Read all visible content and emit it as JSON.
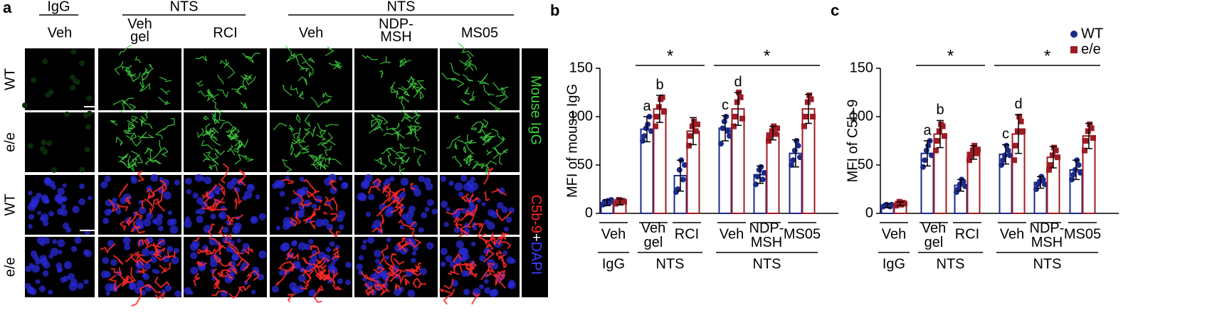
{
  "panel_a": {
    "label": "a",
    "top_groups": [
      "IgG",
      "NTS",
      "NTS"
    ],
    "columns": [
      "Veh",
      "Veh gel",
      "RCI",
      "Veh",
      "NDP-MSH",
      "MS05"
    ],
    "rows": [
      "WT",
      "e/e",
      "WT",
      "e/e"
    ],
    "stain_top": "Mouse IgG",
    "stain_bottom": [
      "C5b-9",
      "+",
      "DAPI"
    ]
  },
  "chart_data": [
    {
      "type": "bar",
      "panel_label": "b",
      "ylabel": "MFI of mouse IgG",
      "ylim": [
        0,
        150
      ],
      "yticks": [
        0,
        50,
        100,
        150
      ],
      "categories": [
        "Veh",
        "Veh gel",
        "RCI",
        "Veh",
        "NDP-MSH",
        "MS05"
      ],
      "groups": [
        "IgG",
        "NTS",
        "NTS"
      ],
      "significance": [
        "*",
        "*"
      ],
      "letters": [
        "a",
        "b",
        "c",
        "d"
      ],
      "legend": false,
      "series": [
        {
          "color": "#1c2a8a",
          "values": [
            11,
            87,
            39,
            88,
            40,
            62
          ],
          "error": [
            3,
            13,
            16,
            13,
            9,
            14
          ],
          "points": [
            [
              9,
              12,
              10,
              13,
              11,
              14
            ],
            [
              75,
              80,
              88,
              92,
              100,
              85
            ],
            [
              22,
              25,
              45,
              55,
              35,
              50
            ],
            [
              72,
              88,
              95,
              100,
              85,
              80
            ],
            [
              30,
              38,
              45,
              48,
              35,
              42
            ],
            [
              50,
              55,
              65,
              75,
              70,
              58
            ]
          ]
        },
        {
          "color": "#9e1b24",
          "values": [
            12,
            108,
            85,
            108,
            83,
            108
          ],
          "error": [
            3,
            14,
            14,
            17,
            7,
            15
          ],
          "points": [
            [
              10,
              12,
              14,
              11,
              13,
              12
            ],
            [
              90,
              100,
              110,
              118,
              120,
              105
            ],
            [
              70,
              80,
              90,
              95,
              85,
              92
            ],
            [
              90,
              100,
              115,
              125,
              120,
              98
            ],
            [
              75,
              80,
              85,
              90,
              82,
              88
            ],
            [
              90,
              100,
              115,
              122,
              118,
              100
            ]
          ]
        }
      ]
    },
    {
      "type": "bar",
      "panel_label": "c",
      "ylabel": "MFI of C5b-9",
      "ylim": [
        0,
        150
      ],
      "yticks": [
        0,
        50,
        100,
        150
      ],
      "categories": [
        "Veh",
        "Veh gel",
        "RCI",
        "Veh",
        "NDP-MSH",
        "MS05"
      ],
      "groups": [
        "IgG",
        "NTS",
        "NTS"
      ],
      "significance": [
        "*",
        "*"
      ],
      "letters": [
        "a",
        "b",
        "c",
        "d"
      ],
      "legend": "top-right",
      "series": [
        {
          "name": "WT",
          "color": "#1c2a8a",
          "values": [
            8,
            62,
            29,
            61,
            32,
            45
          ],
          "error": [
            2,
            13,
            6,
            10,
            6,
            10
          ],
          "points": [
            [
              7,
              8,
              9,
              8,
              7,
              9
            ],
            [
              48,
              55,
              65,
              70,
              75,
              60
            ],
            [
              22,
              25,
              30,
              35,
              33,
              28
            ],
            [
              50,
              55,
              60,
              70,
              65,
              60
            ],
            [
              25,
              30,
              33,
              38,
              35,
              30
            ],
            [
              35,
              40,
              45,
              55,
              50,
              42
            ]
          ]
        },
        {
          "name": "e/e",
          "color": "#9e1b24",
          "values": [
            10,
            82,
            63,
            82,
            58,
            80
          ],
          "error": [
            2,
            14,
            7,
            20,
            11,
            13
          ],
          "points": [
            [
              8,
              10,
              12,
              9,
              11,
              10
            ],
            [
              65,
              75,
              85,
              92,
              90,
              80
            ],
            [
              55,
              60,
              65,
              70,
              62,
              66
            ],
            [
              55,
              70,
              85,
              100,
              95,
              85
            ],
            [
              45,
              50,
              60,
              68,
              65,
              58
            ],
            [
              65,
              75,
              85,
              92,
              88,
              78
            ]
          ]
        }
      ]
    }
  ]
}
